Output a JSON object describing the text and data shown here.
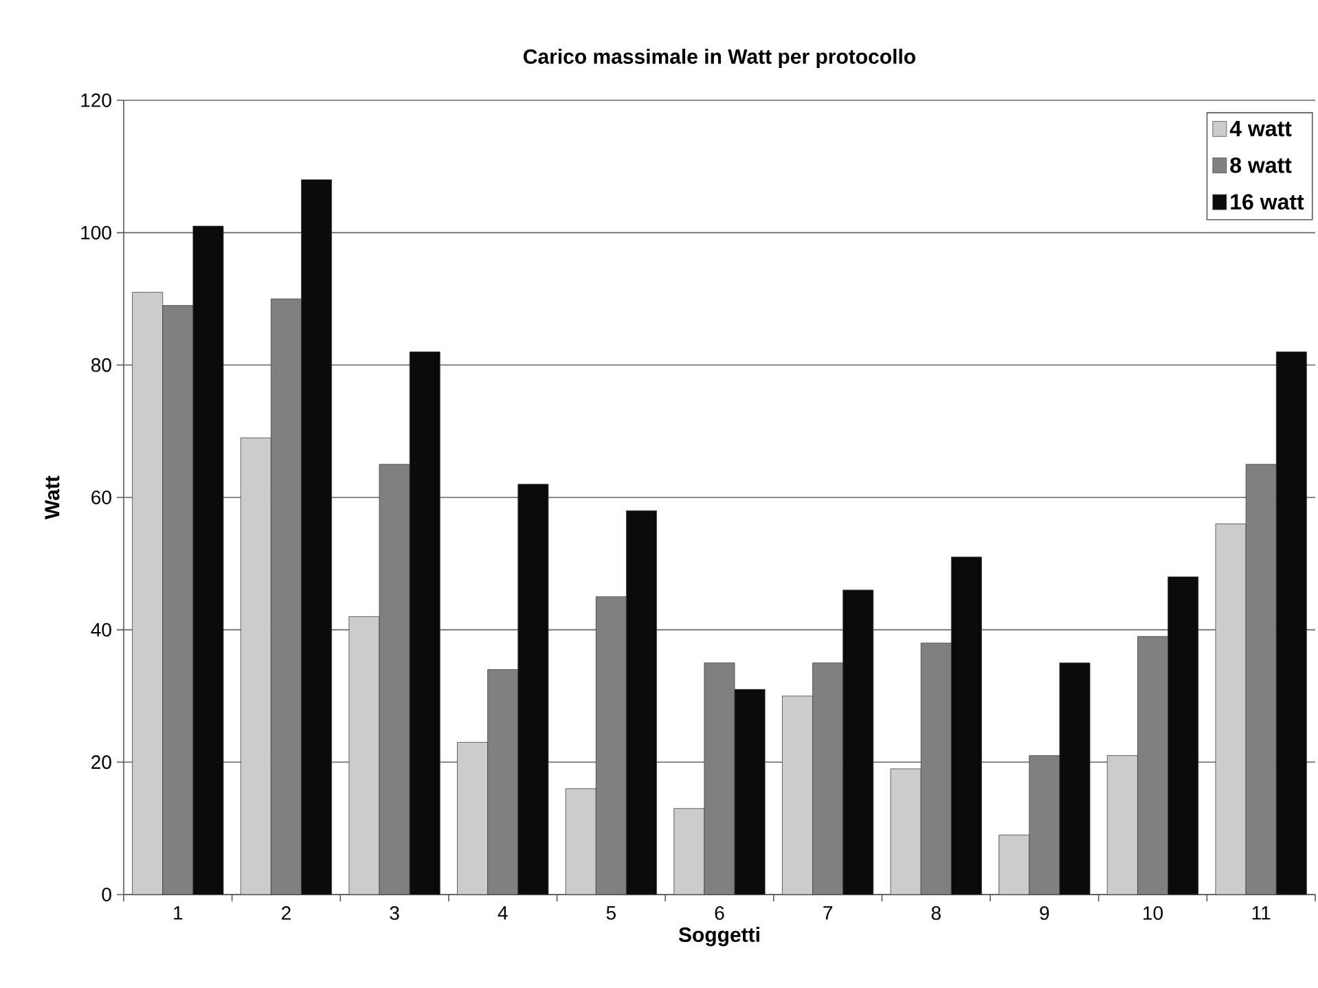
{
  "chart_data": {
    "type": "bar",
    "title": "Carico massimale in Watt per protocollo",
    "xlabel": "Soggetti",
    "ylabel": "Watt",
    "categories": [
      "1",
      "2",
      "3",
      "4",
      "5",
      "6",
      "7",
      "8",
      "9",
      "10",
      "11"
    ],
    "series": [
      {
        "name": "4 watt",
        "color": "#cccccc",
        "values": [
          91,
          69,
          42,
          23,
          16,
          13,
          30,
          19,
          9,
          21,
          56
        ]
      },
      {
        "name": "8 watt",
        "color": "#808080",
        "values": [
          89,
          90,
          65,
          34,
          45,
          35,
          35,
          38,
          21,
          39,
          65
        ]
      },
      {
        "name": "16 watt",
        "color": "#0a0a0a",
        "values": [
          101,
          108,
          82,
          62,
          58,
          31,
          46,
          51,
          35,
          48,
          82
        ]
      }
    ],
    "ylim": [
      0,
      120
    ],
    "yticks": [
      0,
      20,
      40,
      60,
      80,
      100,
      120
    ],
    "grid": "y",
    "legend": "top right"
  }
}
